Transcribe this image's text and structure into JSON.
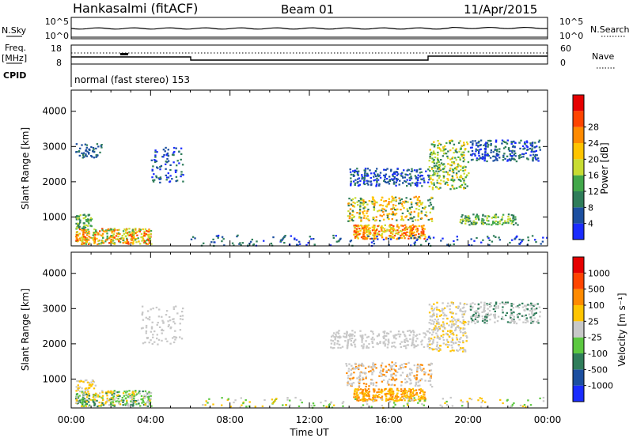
{
  "header": {
    "station": "Hankasalmi (fitACF)",
    "beam": "Beam 01",
    "date": "11/Apr/2015"
  },
  "noise_panel": {
    "left_label": "N.Sky",
    "left_tick_top": "10^5",
    "left_tick_bottom": "10^0",
    "right_label": "N.Search",
    "right_tick_top": "10^5",
    "right_tick_bottom": "10^0"
  },
  "freq_panel": {
    "left_label_line1": "Freq.",
    "left_label_line2": "[MHz]",
    "left_tick_top": "18",
    "left_tick_bottom": "8",
    "right_label": "Nave",
    "right_tick_top": "60",
    "right_tick_bottom": "0",
    "cpid_label": "CPID",
    "mode_text": "normal (fast stereo) 153"
  },
  "chart_data": [
    {
      "type": "heatmap",
      "title": "",
      "ylabel": "Slant Range [km]",
      "xlabel": "",
      "ylim": [
        180,
        4600
      ],
      "yticks": [
        "1000",
        "2000",
        "3000",
        "4000"
      ],
      "xlim": [
        "00:00",
        "24:00"
      ],
      "colorbar": {
        "label": "Power [dB]",
        "ticks": [
          "4",
          "8",
          "12",
          "16",
          "20",
          "24",
          "28"
        ],
        "colors": [
          "#1a2cff",
          "#1c4fa0",
          "#2f7d5a",
          "#42a84a",
          "#c8dc32",
          "#ffc400",
          "#ff8a00",
          "#ff4400",
          "#e60000"
        ]
      }
    },
    {
      "type": "heatmap",
      "title": "",
      "ylabel": "Slant Range [km]",
      "xlabel": "Time UT",
      "ylim": [
        180,
        4600
      ],
      "yticks": [
        "1000",
        "2000",
        "3000",
        "4000"
      ],
      "xticks": [
        "00:00",
        "04:00",
        "08:00",
        "12:00",
        "16:00",
        "20:00",
        "00:00"
      ],
      "colorbar": {
        "label": "Velocity [m s⁻¹]",
        "ticks": [
          "1000",
          "500",
          "100",
          "25",
          "-25",
          "-100",
          "-500",
          "-1000"
        ],
        "colors": [
          "#1a2cff",
          "#1c4fa0",
          "#2f7d5a",
          "#5cc840",
          "#c8c8c8",
          "#ffc400",
          "#ff8a00",
          "#ff4400",
          "#e60000"
        ]
      }
    }
  ]
}
